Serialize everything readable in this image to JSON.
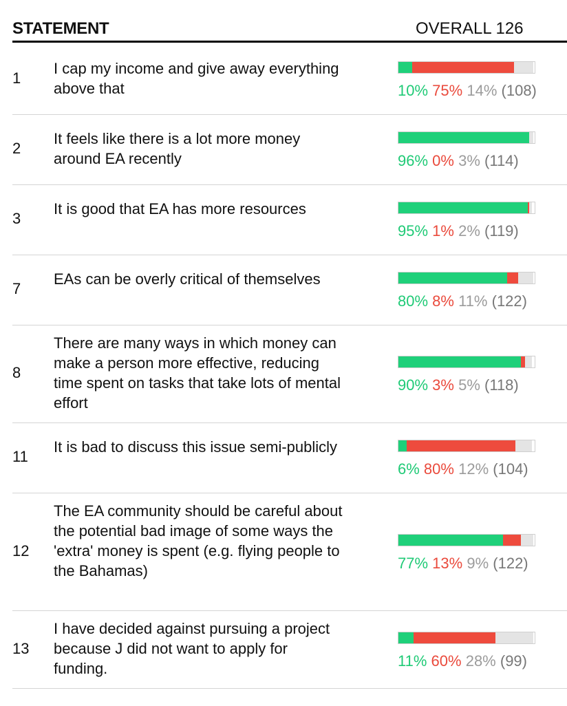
{
  "header": {
    "statement_label": "STATEMENT",
    "overall_label": "OVERALL 126"
  },
  "colors": {
    "agree": "#1fd07a",
    "disagree": "#ee4b3d",
    "pass": "#e4e4e4"
  },
  "chart_data": {
    "type": "bar",
    "stacked": true,
    "series": [
      {
        "values": [
          10,
          96,
          95,
          80,
          90,
          6,
          77,
          11
        ]
      },
      {
        "values": [
          75,
          0,
          1,
          8,
          3,
          80,
          13,
          60
        ]
      },
      {
        "values": [
          14,
          3,
          2,
          11,
          5,
          12,
          9,
          28
        ]
      }
    ],
    "rows": [
      {
        "id": "1",
        "statement": "I cap my income and give away everything above that",
        "agree": 10,
        "disagree": 75,
        "pass": 14,
        "count": 108
      },
      {
        "id": "2",
        "statement": "It feels like there is a lot more money around EA recently",
        "agree": 96,
        "disagree": 0,
        "pass": 3,
        "count": 114
      },
      {
        "id": "3",
        "statement": "It is good that EA has more resources",
        "agree": 95,
        "disagree": 1,
        "pass": 2,
        "count": 119
      },
      {
        "id": "7",
        "statement": "EAs can be overly critical of themselves",
        "agree": 80,
        "disagree": 8,
        "pass": 11,
        "count": 122
      },
      {
        "id": "8",
        "statement": "There are many ways in which money can make a person more effective, reducing time spent on tasks that take lots of mental effort",
        "agree": 90,
        "disagree": 3,
        "pass": 5,
        "count": 118
      },
      {
        "id": "11",
        "statement": "It is bad to discuss this issue semi-publicly",
        "agree": 6,
        "disagree": 80,
        "pass": 12,
        "count": 104
      },
      {
        "id": "12",
        "statement": "The EA community should be careful about the potential bad image of some ways the 'extra' money is spent (e.g. flying people to the Bahamas)",
        "agree": 77,
        "disagree": 13,
        "pass": 9,
        "count": 122
      },
      {
        "id": "13",
        "statement": "I have decided against pursuing a project because J did not want to apply for funding.",
        "agree": 11,
        "disagree": 60,
        "pass": 28,
        "count": 99
      }
    ]
  }
}
